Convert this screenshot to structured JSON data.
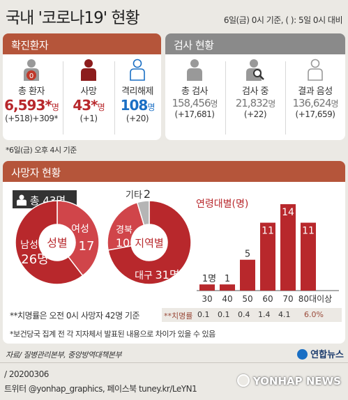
{
  "header": {
    "title": "국내 '코로나19' 현황",
    "basis": "6일(금) 0시 기준, ( ): 5일 0시 대비"
  },
  "confirmed": {
    "section_title": "확진환자",
    "items": [
      {
        "label": "총 환자",
        "value": "6,593*",
        "unit": "명",
        "change": "(+518)+309*"
      },
      {
        "label": "사망",
        "value": "43*",
        "unit": "명",
        "change": "(+1)"
      },
      {
        "label": "격리해제",
        "value": "108",
        "unit": "명",
        "change": "(+20)"
      }
    ],
    "icon_badge": "0",
    "footnote": "*6일(금) 오후 4시 기준"
  },
  "tests": {
    "section_title": "검사 현황",
    "items": [
      {
        "label": "총 검사",
        "value": "158,456",
        "unit": "명",
        "change": "(+17,681)"
      },
      {
        "label": "검사 중",
        "value": "21,832",
        "unit": "명",
        "change": "(+22)"
      },
      {
        "label": "결과 음성",
        "value": "136,624",
        "unit": "명",
        "change": "(+17,659)"
      }
    ]
  },
  "deaths": {
    "section_title": "사망자 현황",
    "total_label": "총 43명",
    "rate_note": "**치명률은 오전 0시 사망자 42명 기준",
    "rate_label": "**치명률",
    "report_note": "*보건당국 집계 전 각 지자체서 발표된 내용으로 차이가 있을 수 있음"
  },
  "chart_data": [
    {
      "type": "pie",
      "title": "성별",
      "slices": [
        {
          "label": "남성",
          "value": 26,
          "display": "26명",
          "color": "#b8282c"
        },
        {
          "label": "여성",
          "value": 17,
          "display": "17",
          "color": "#d0454a"
        }
      ]
    },
    {
      "type": "pie",
      "title": "지역별",
      "slices": [
        {
          "label": "대구",
          "value": 31,
          "display": "31명",
          "color": "#b8282c"
        },
        {
          "label": "경북",
          "value": 10,
          "display": "10",
          "color": "#d0454a"
        },
        {
          "label": "기타",
          "value": 2,
          "display": "2",
          "color": "#b5b5b5"
        }
      ]
    },
    {
      "type": "bar",
      "title": "연령대별(명)",
      "categories": [
        "30",
        "40",
        "50",
        "60",
        "70",
        "80대이상"
      ],
      "values": [
        1,
        1,
        5,
        11,
        14,
        11
      ],
      "value_labels": [
        "1명",
        "1",
        "5",
        "11",
        "14",
        "11"
      ],
      "fatality_rate": [
        "0.1",
        "0.1",
        "0.4",
        "1.4",
        "4.1",
        "6.0%"
      ],
      "color": "#b8282c",
      "ylim": [
        0,
        14
      ]
    }
  ],
  "footer": {
    "source": "자료/ 질병관리본부, 중앙방역대책본부",
    "brand": "연합뉴스",
    "code": "/ 20200306",
    "social": "트위터 @yonhap_graphics, 페이스북 tuney.kr/LeYN1",
    "watermark": "YONHAP NEWS"
  },
  "colors": {
    "red": "#b8282c",
    "header_red": "#b5553a",
    "header_gray": "#8a8a8a",
    "blue": "#1a6fc4"
  }
}
